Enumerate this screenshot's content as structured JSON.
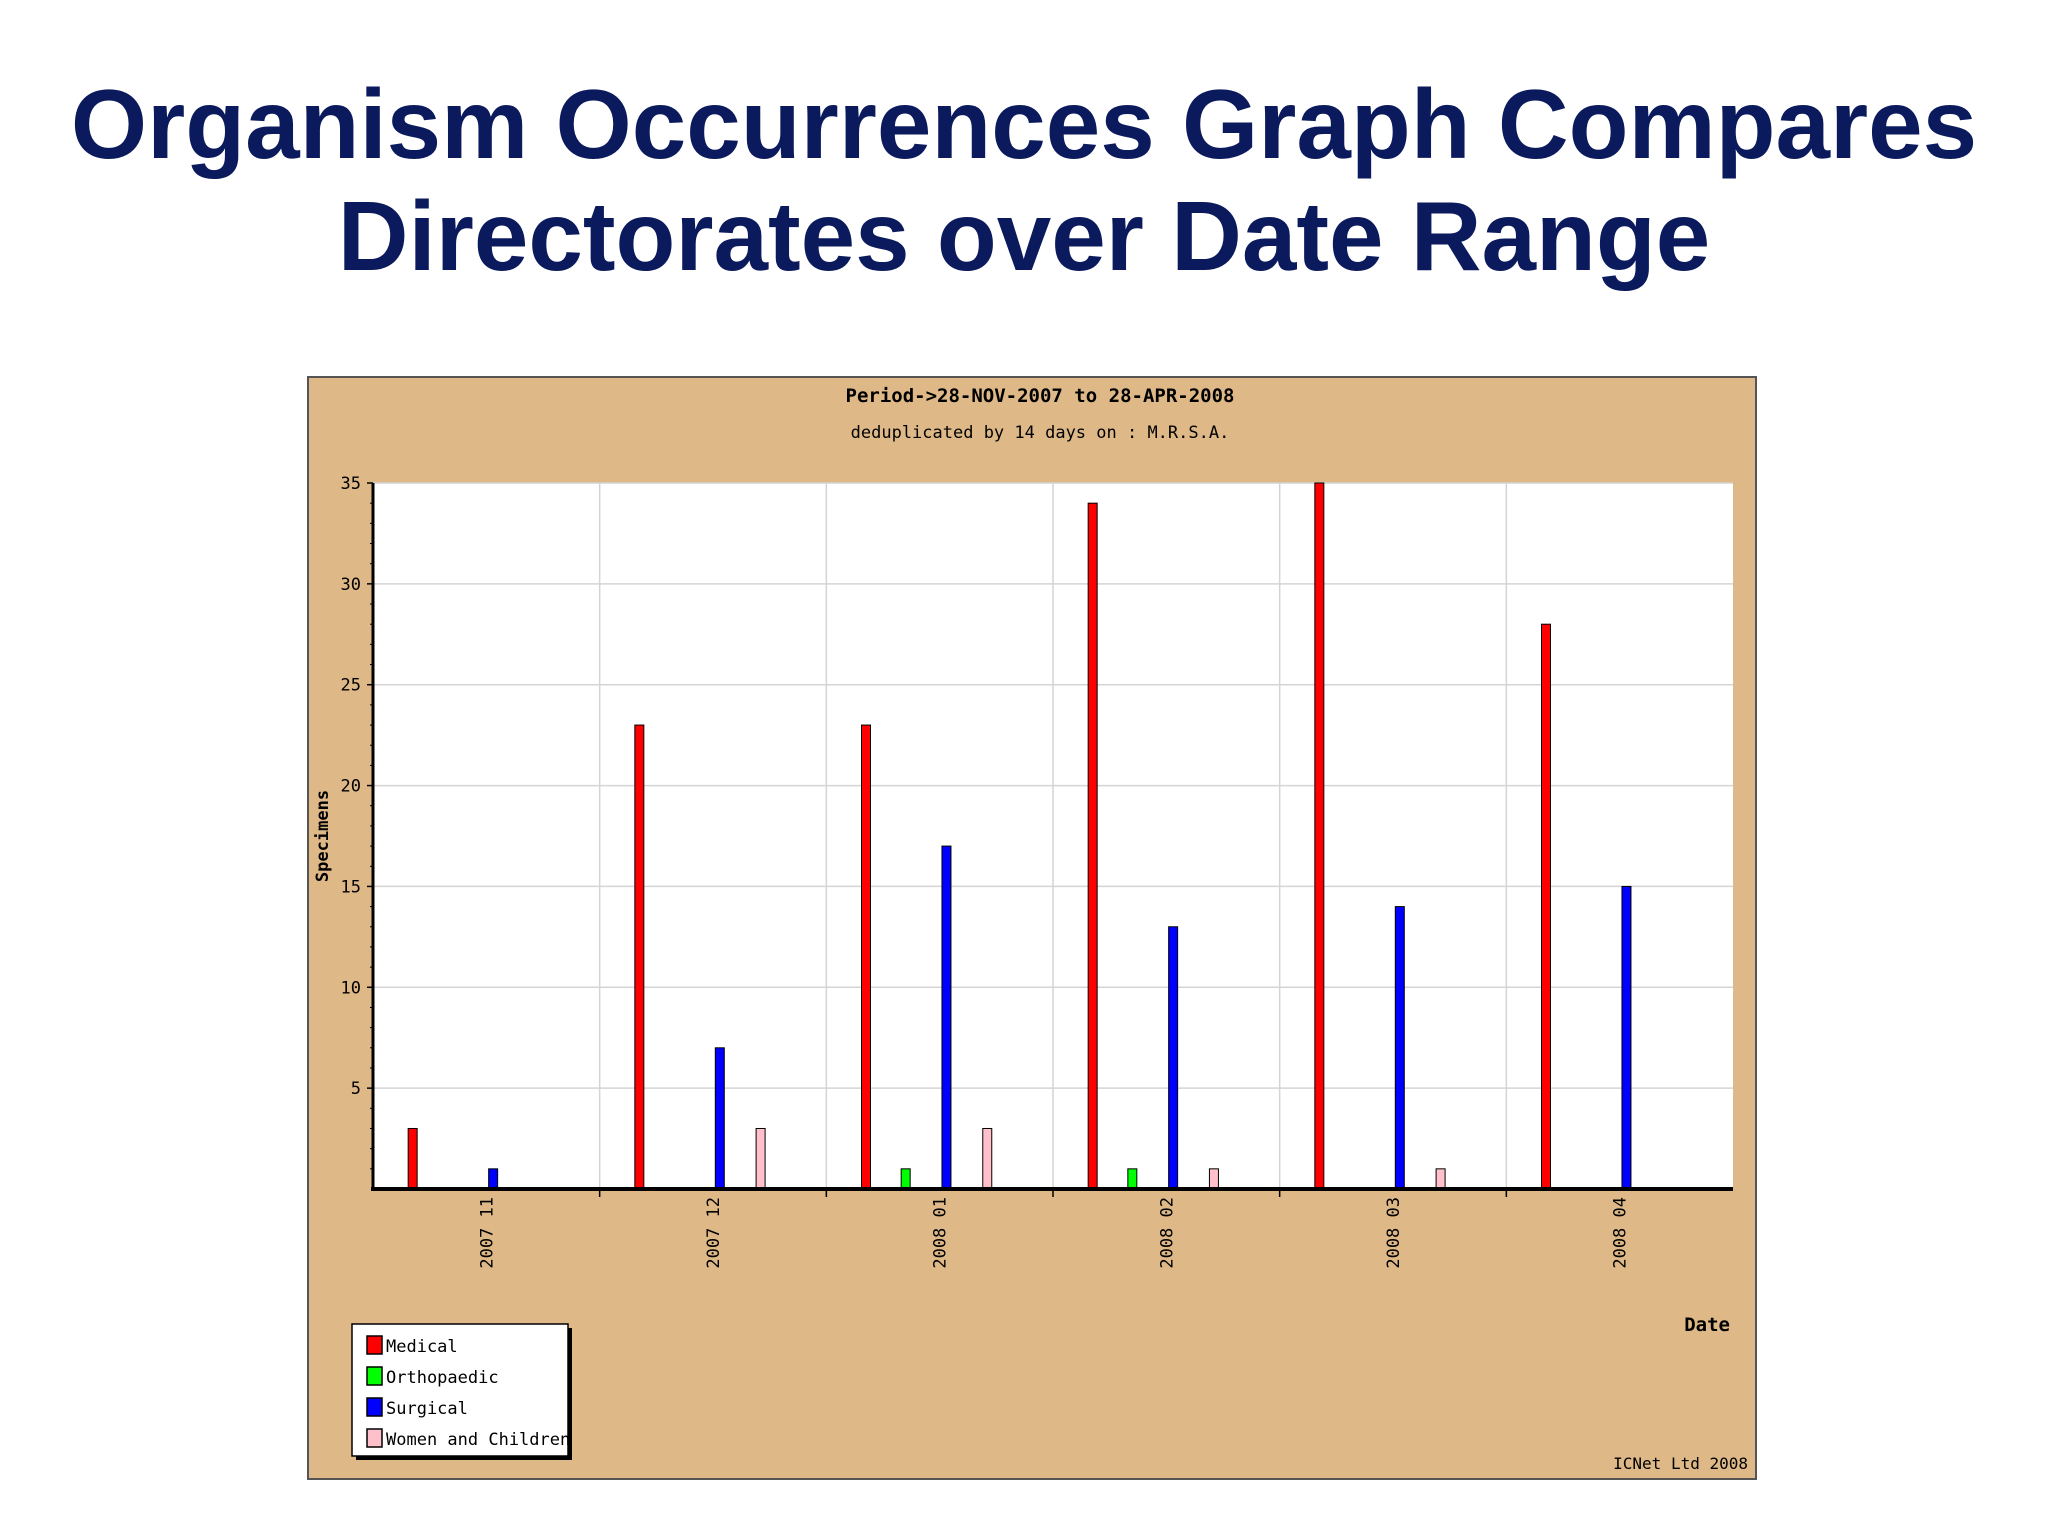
{
  "slide": {
    "title_line1": "Organism Occurrences Graph Compares",
    "title_line2": "Directorates over Date Range"
  },
  "chart_data": {
    "type": "bar",
    "title": "Period->28-NOV-2007 to 28-APR-2008",
    "subtitle": "deduplicated by 14 days on : M.R.S.A.",
    "xlabel": "Date",
    "ylabel": "Specimens",
    "credit": "ICNet Ltd 2008",
    "categories": [
      "2007 11",
      "2007 12",
      "2008 01",
      "2008 02",
      "2008 03",
      "2008 04"
    ],
    "ylim": [
      0,
      35
    ],
    "yticks": [
      5,
      10,
      15,
      20,
      25,
      30,
      35
    ],
    "grid": true,
    "legend_position": "bottom-left",
    "series": [
      {
        "name": "Medical",
        "color": "#ff0000",
        "values": [
          3,
          23,
          23,
          34,
          35,
          28
        ]
      },
      {
        "name": "Orthopaedic",
        "color": "#00ff00",
        "values": [
          0,
          0,
          1,
          1,
          0,
          0
        ]
      },
      {
        "name": "Surgical",
        "color": "#0000ff",
        "values": [
          1,
          7,
          17,
          13,
          14,
          15
        ]
      },
      {
        "name": "Women and Children",
        "color": "#ffc0cb",
        "values": [
          0,
          3,
          3,
          1,
          1,
          0
        ]
      }
    ],
    "colors": {
      "panel_background": "#deb887",
      "plot_background": "#ffffff",
      "title_color": "#0b1a5c"
    }
  }
}
